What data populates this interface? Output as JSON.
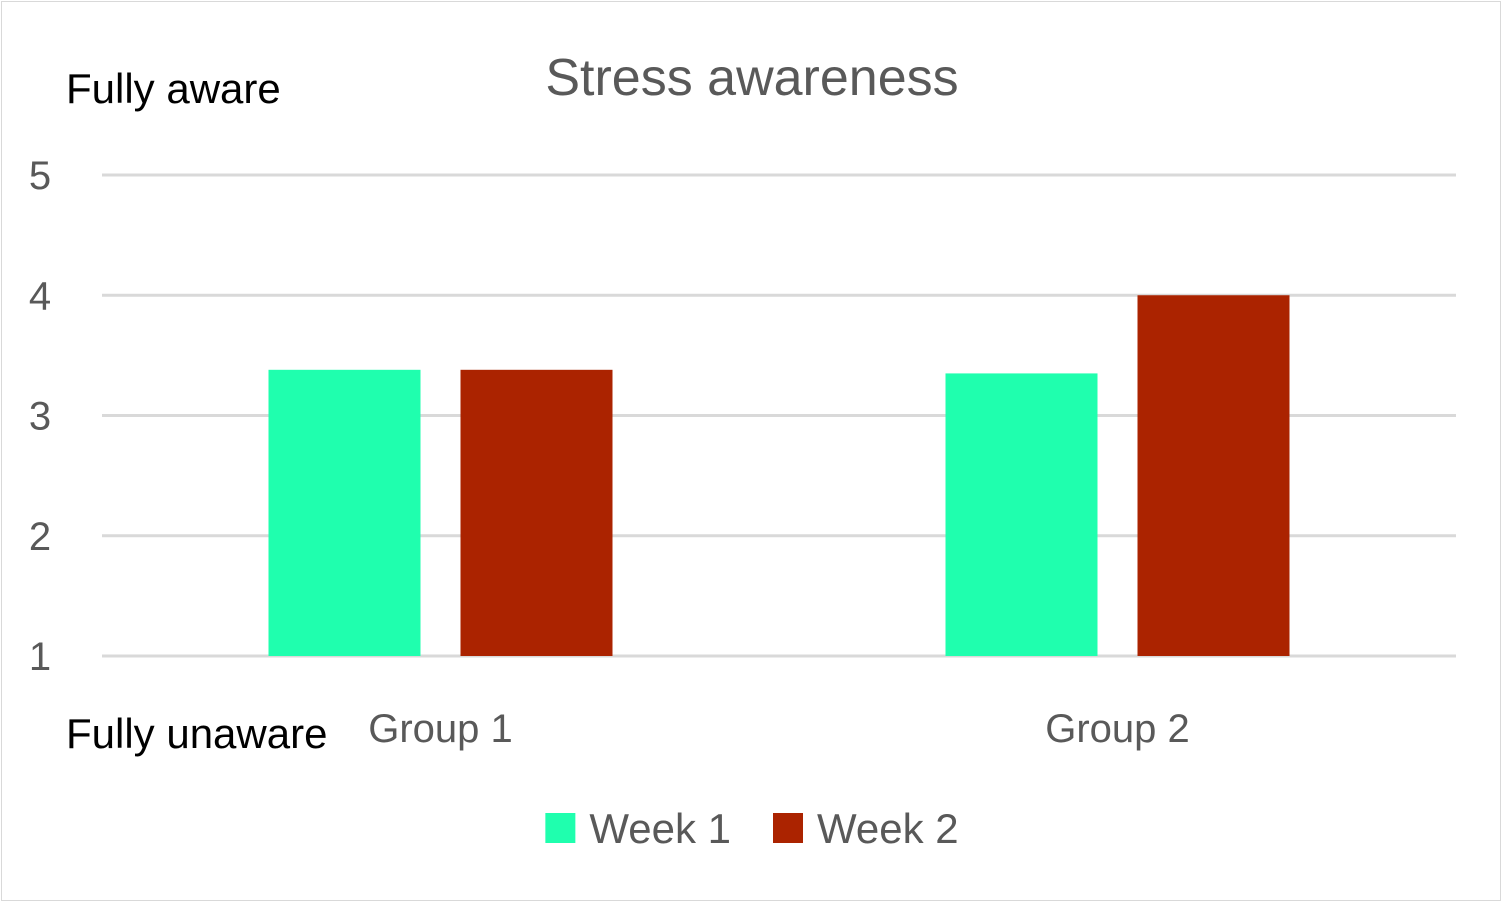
{
  "chart_data": {
    "type": "bar",
    "title": "Stress awareness",
    "categories": [
      "Group 1",
      "Group 2"
    ],
    "series": [
      {
        "name": "Week 1",
        "color": "#1fffae",
        "values": [
          3.38,
          3.35
        ]
      },
      {
        "name": "Week 2",
        "color": "#ab2300",
        "values": [
          3.38,
          4.0
        ]
      }
    ],
    "ylim": [
      1,
      5
    ],
    "yticks": [
      1,
      2,
      3,
      4,
      5
    ],
    "annotations": {
      "top": "Fully aware",
      "bottom": "Fully unaware"
    },
    "grid": true,
    "gridline_color": "#d9d9d9",
    "legend_position": "bottom"
  }
}
